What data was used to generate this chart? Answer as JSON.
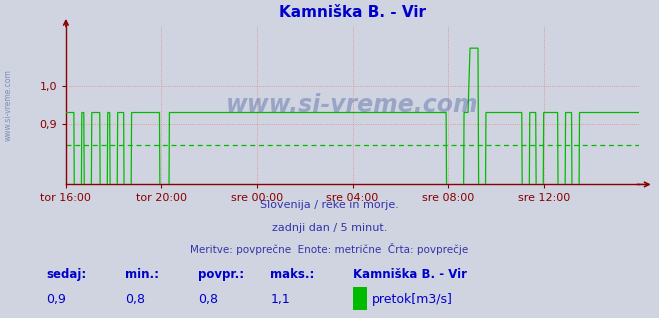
{
  "title": "Kamniška B. - Vir",
  "title_color": "#0000cc",
  "bg_color": "#d0d4e0",
  "plot_bg_color": "#d0d4e0",
  "line_color": "#00bb00",
  "avg_line_color": "#00bb00",
  "grid_color": "#dd8888",
  "axis_color": "#880000",
  "tick_color": "#0000aa",
  "ytick_labels": [
    "0,9",
    "1,0"
  ],
  "ytick_vals": [
    0.9,
    1.0
  ],
  "ylim": [
    0.74,
    1.16
  ],
  "xlim": [
    0,
    24
  ],
  "xtick_positions": [
    0,
    4,
    8,
    12,
    16,
    20
  ],
  "xtick_labels": [
    "tor 16:00",
    "tor 20:00",
    "sre 00:00",
    "sre 04:00",
    "sre 08:00",
    "sre 12:00"
  ],
  "subtitle1": "Slovenija / reke in morje.",
  "subtitle2": "zadnji dan / 5 minut.",
  "subtitle3": "Meritve: povprečne  Enote: metrične  Črta: povprečje",
  "subtitle_color": "#3333aa",
  "watermark": "www.si-vreme.com",
  "footer_label1": "sedaj:",
  "footer_label2": "min.:",
  "footer_label3": "povpr.:",
  "footer_label4": "maks.:",
  "footer_val1": "0,9",
  "footer_val2": "0,8",
  "footer_val3": "0,8",
  "footer_val4": "1,1",
  "footer_series": "Kamniška B. - Vir",
  "footer_unit": "pretok[m3/s]",
  "footer_color": "#0000cc",
  "avg_value": 0.845,
  "n_points": 289,
  "high_val": 0.93,
  "spike_val": 1.1,
  "low_val": 0.0
}
